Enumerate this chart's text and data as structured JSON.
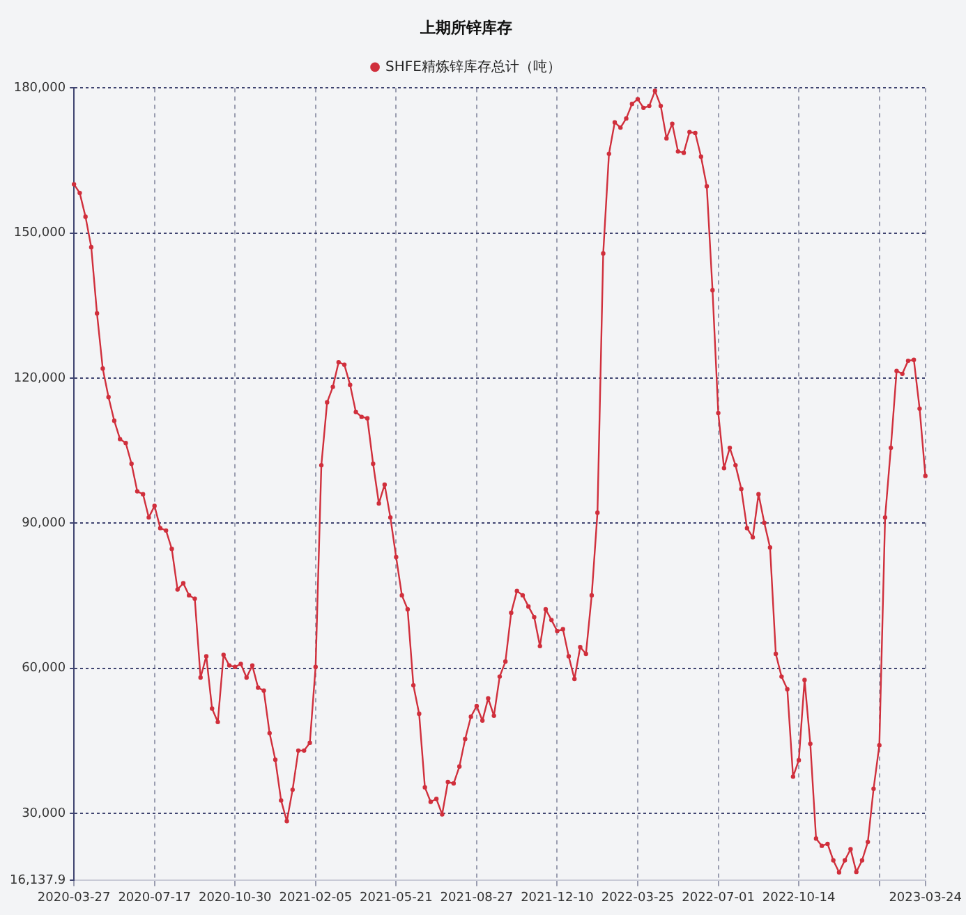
{
  "chart_data": {
    "type": "line",
    "title": "上期所锌库存",
    "categories": [
      "2020-03-27",
      null,
      null,
      null,
      null,
      null,
      null,
      null,
      null,
      null,
      null,
      null,
      null,
      null,
      "2020-07-17",
      null,
      null,
      null,
      null,
      null,
      null,
      null,
      null,
      null,
      null,
      null,
      null,
      null,
      "2020-10-30",
      null,
      null,
      null,
      null,
      null,
      null,
      null,
      null,
      null,
      null,
      null,
      null,
      null,
      "2021-02-05",
      null,
      null,
      null,
      null,
      null,
      null,
      null,
      null,
      null,
      null,
      null,
      null,
      null,
      "2021-05-21",
      null,
      null,
      null,
      null,
      null,
      null,
      null,
      null,
      null,
      null,
      null,
      null,
      null,
      "2021-08-27",
      null,
      null,
      null,
      null,
      null,
      null,
      null,
      null,
      null,
      null,
      null,
      null,
      null,
      "2021-12-10",
      null,
      null,
      null,
      null,
      null,
      null,
      null,
      null,
      null,
      null,
      null,
      null,
      null,
      "2022-03-25",
      null,
      null,
      null,
      null,
      null,
      null,
      null,
      null,
      null,
      null,
      null,
      null,
      null,
      "2022-07-01",
      null,
      null,
      null,
      null,
      null,
      null,
      null,
      null,
      null,
      null,
      null,
      null,
      null,
      "2022-10-14",
      null,
      null,
      null,
      null,
      null,
      null,
      null,
      null,
      null,
      null,
      null,
      null,
      null,
      null,
      null,
      null,
      null,
      null,
      null,
      null,
      null,
      "2023-03-24"
    ],
    "series": [
      {
        "name": "SHFE精炼锌库存总计（吨）",
        "color": "#d02f3c",
        "values": [
          160100,
          158300,
          153400,
          147100,
          133400,
          122000,
          116100,
          111200,
          107400,
          106600,
          102300,
          96600,
          96000,
          91200,
          93600,
          89000,
          88500,
          84700,
          76300,
          77600,
          75100,
          74400,
          58100,
          62500,
          51700,
          48900,
          62800,
          60600,
          60300,
          60900,
          58100,
          60600,
          56000,
          55400,
          46600,
          41100,
          32700,
          28400,
          34900,
          43000,
          43000,
          44600,
          60300,
          102000,
          115000,
          118200,
          123300,
          122800,
          118600,
          113000,
          112000,
          111700,
          102300,
          94100,
          98000,
          91200,
          83000,
          75100,
          72200,
          56500,
          50600,
          35400,
          32400,
          33000,
          29800,
          36500,
          36200,
          39700,
          45400,
          50000,
          52200,
          49200,
          53800,
          50200,
          58300,
          61400,
          71500,
          76000,
          75100,
          72800,
          70600,
          64600,
          72200,
          70000,
          67700,
          68100,
          62500,
          57800,
          64400,
          63000,
          75100,
          92200,
          145800,
          166400,
          172900,
          171800,
          173700,
          176700,
          177700,
          175900,
          176300,
          179400,
          176300,
          169600,
          172600,
          166900,
          166600,
          170900,
          170700,
          165800,
          159700,
          138200,
          112800,
          101400,
          105600,
          102000,
          97100,
          89000,
          87100,
          96000,
          90100,
          85000,
          63000,
          58300,
          55700,
          37600,
          41000,
          57600,
          44400,
          24800,
          23300,
          23700,
          20300,
          17800,
          20300,
          22600,
          17900,
          20300,
          24100,
          35100,
          44100,
          91200,
          105600,
          121500,
          120900,
          123600,
          123800,
          113700,
          99800
        ]
      }
    ],
    "ylim": [
      16137.9,
      180000
    ],
    "yticks": [
      {
        "value": 16137.9,
        "label": "16,137.9"
      },
      {
        "value": 30000,
        "label": "30,000"
      },
      {
        "value": 60000,
        "label": "60,000"
      },
      {
        "value": 90000,
        "label": "90,000"
      },
      {
        "value": 120000,
        "label": "120,000"
      },
      {
        "value": 150000,
        "label": "150,000"
      },
      {
        "value": 180000,
        "label": "180,000"
      }
    ],
    "grid": true,
    "legend": "top",
    "marker": "circle",
    "line_style": "solid"
  }
}
